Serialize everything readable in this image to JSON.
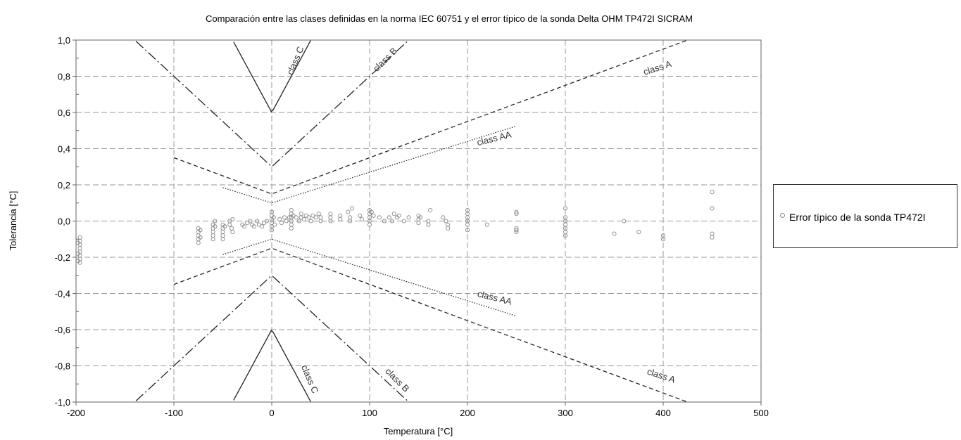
{
  "chart_data": {
    "type": "scatter",
    "title": "Comparación entre las clases definidas en la norma IEC 60751 y el error típico de la sonda Delta OHM TP472I SICRAM",
    "xlabel": "Temperatura [°C]",
    "ylabel": "Tolerancia [°C]",
    "xlim": [
      -200,
      500
    ],
    "ylim": [
      -1.0,
      1.0
    ],
    "xticks": [
      -200,
      -100,
      0,
      100,
      200,
      300,
      400,
      500
    ],
    "xtick_labels": [
      "-200",
      "-100",
      "0",
      "100",
      "200",
      "300",
      "400",
      "500"
    ],
    "yticks": [
      -1.0,
      -0.8,
      -0.6,
      -0.4,
      -0.2,
      0.0,
      0.2,
      0.4,
      0.6,
      0.8,
      1.0
    ],
    "ytick_labels": [
      "-1,0",
      "-0,8",
      "-0,6",
      "-0,4",
      "-0,2",
      "0,0",
      "0,2",
      "0,4",
      "0,6",
      "0,8",
      "1,0"
    ],
    "grid": true,
    "legend_position": "right",
    "tolerance_classes": [
      {
        "label": "class AA",
        "offset": 0.1,
        "slope": 0.0017,
        "x_range": [
          -50,
          250
        ],
        "style": "dotted"
      },
      {
        "label": "class A",
        "offset": 0.15,
        "slope": 0.002,
        "x_range": [
          -100,
          500
        ],
        "style": "dashed"
      },
      {
        "label": "class B",
        "offset": 0.3,
        "slope": 0.005,
        "x_range": [
          -200,
          500
        ],
        "style": "dashdot"
      },
      {
        "label": "class C",
        "offset": 0.6,
        "slope": 0.01,
        "x_range": [
          -200,
          500
        ],
        "style": "solid"
      }
    ],
    "class_labels": [
      {
        "text": "class C",
        "x": 27,
        "y": 0.88,
        "angle": -67
      },
      {
        "text": "class B",
        "x": 118,
        "y": 0.88,
        "angle": -45
      },
      {
        "text": "class A",
        "x": 395,
        "y": 0.83,
        "angle": -18
      },
      {
        "text": "class AA",
        "x": 228,
        "y": 0.44,
        "angle": -14
      },
      {
        "text": "class AA",
        "x": 227,
        "y": -0.44,
        "angle": 14
      },
      {
        "text": "class A",
        "x": 397,
        "y": -0.87,
        "angle": 18
      },
      {
        "text": "class B",
        "x": 126,
        "y": -0.89,
        "angle": 45
      },
      {
        "text": "class C",
        "x": 36,
        "y": -0.88,
        "angle": 67
      }
    ],
    "series": [
      {
        "name": "Error típico de la sonda TP472I",
        "points": [
          [
            -196,
            -0.09
          ],
          [
            -196,
            -0.11
          ],
          [
            -196,
            -0.13
          ],
          [
            -196,
            -0.15
          ],
          [
            -196,
            -0.17
          ],
          [
            -196,
            -0.19
          ],
          [
            -196,
            -0.21
          ],
          [
            -196,
            -0.23
          ],
          [
            -198,
            -0.12
          ],
          [
            -198,
            -0.18
          ],
          [
            -198,
            -0.22
          ],
          [
            -75,
            -0.04
          ],
          [
            -75,
            -0.06
          ],
          [
            -75,
            -0.08
          ],
          [
            -75,
            -0.1
          ],
          [
            -75,
            -0.12
          ],
          [
            -73,
            -0.05
          ],
          [
            -73,
            -0.09
          ],
          [
            -60,
            -0.02
          ],
          [
            -60,
            -0.04
          ],
          [
            -60,
            -0.06
          ],
          [
            -60,
            -0.08
          ],
          [
            -60,
            -0.1
          ],
          [
            -58,
            0.0
          ],
          [
            -58,
            -0.03
          ],
          [
            -50,
            -0.02
          ],
          [
            -50,
            -0.04
          ],
          [
            -50,
            -0.06
          ],
          [
            -50,
            -0.08
          ],
          [
            -50,
            -0.1
          ],
          [
            -48,
            -0.03
          ],
          [
            -43,
            0.0
          ],
          [
            -43,
            -0.02
          ],
          [
            -41,
            -0.04
          ],
          [
            -40,
            0.01
          ],
          [
            -40,
            -0.06
          ],
          [
            -30,
            -0.02
          ],
          [
            -28,
            -0.03
          ],
          [
            -25,
            -0.01
          ],
          [
            -22,
            0.0
          ],
          [
            -20,
            -0.02
          ],
          [
            -18,
            -0.03
          ],
          [
            -15,
            0.0
          ],
          [
            -13,
            -0.02
          ],
          [
            -10,
            -0.03
          ],
          [
            -8,
            -0.01
          ],
          [
            -5,
            0.0
          ],
          [
            0,
            0.05
          ],
          [
            0,
            0.03
          ],
          [
            0,
            0.01
          ],
          [
            0,
            -0.01
          ],
          [
            0,
            -0.03
          ],
          [
            0,
            -0.05
          ],
          [
            2,
            0.02
          ],
          [
            3,
            -0.02
          ],
          [
            8,
            0.01
          ],
          [
            10,
            -0.01
          ],
          [
            13,
            0.02
          ],
          [
            15,
            0.0
          ],
          [
            18,
            0.02
          ],
          [
            20,
            0.06
          ],
          [
            20,
            0.04
          ],
          [
            20,
            0.02
          ],
          [
            20,
            0.0
          ],
          [
            20,
            -0.02
          ],
          [
            20,
            -0.04
          ],
          [
            22,
            0.03
          ],
          [
            25,
            0.02
          ],
          [
            28,
            0.0
          ],
          [
            30,
            0.04
          ],
          [
            30,
            0.02
          ],
          [
            33,
            0.01
          ],
          [
            35,
            0.03
          ],
          [
            38,
            0.02
          ],
          [
            40,
            0.0
          ],
          [
            42,
            0.03
          ],
          [
            45,
            0.02
          ],
          [
            48,
            0.04
          ],
          [
            50,
            0.02
          ],
          [
            50,
            0.0
          ],
          [
            60,
            0.04
          ],
          [
            60,
            0.02
          ],
          [
            60,
            0.0
          ],
          [
            70,
            0.03
          ],
          [
            70,
            0.01
          ],
          [
            78,
            0.05
          ],
          [
            80,
            0.0
          ],
          [
            80,
            0.02
          ],
          [
            82,
            0.07
          ],
          [
            90,
            0.03
          ],
          [
            92,
            0.01
          ],
          [
            100,
            0.06
          ],
          [
            100,
            0.04
          ],
          [
            100,
            0.02
          ],
          [
            100,
            0.0
          ],
          [
            100,
            -0.02
          ],
          [
            102,
            0.05
          ],
          [
            104,
            0.03
          ],
          [
            110,
            0.02
          ],
          [
            115,
            0.0
          ],
          [
            120,
            0.02
          ],
          [
            123,
            0.0
          ],
          [
            125,
            0.04
          ],
          [
            128,
            0.02
          ],
          [
            130,
            0.03
          ],
          [
            135,
            0.0
          ],
          [
            140,
            0.02
          ],
          [
            150,
            0.03
          ],
          [
            150,
            0.01
          ],
          [
            150,
            -0.01
          ],
          [
            152,
            0.02
          ],
          [
            160,
            0.0
          ],
          [
            160,
            -0.02
          ],
          [
            162,
            0.06
          ],
          [
            175,
            0.02
          ],
          [
            178,
            0.0
          ],
          [
            180,
            -0.02
          ],
          [
            180,
            -0.04
          ],
          [
            200,
            0.06
          ],
          [
            200,
            0.04
          ],
          [
            200,
            0.02
          ],
          [
            200,
            0.0
          ],
          [
            200,
            -0.02
          ],
          [
            200,
            -0.05
          ],
          [
            220,
            -0.02
          ],
          [
            250,
            0.05
          ],
          [
            250,
            0.04
          ],
          [
            250,
            -0.04
          ],
          [
            250,
            -0.05
          ],
          [
            250,
            -0.06
          ],
          [
            300,
            0.07
          ],
          [
            300,
            0.02
          ],
          [
            300,
            0.0
          ],
          [
            300,
            -0.02
          ],
          [
            300,
            -0.04
          ],
          [
            300,
            -0.06
          ],
          [
            300,
            -0.08
          ],
          [
            350,
            -0.07
          ],
          [
            360,
            0.0
          ],
          [
            375,
            -0.06
          ],
          [
            400,
            -0.08
          ],
          [
            400,
            -0.1
          ],
          [
            450,
            0.16
          ],
          [
            450,
            0.07
          ],
          [
            450,
            -0.07
          ],
          [
            450,
            -0.09
          ]
        ]
      }
    ]
  }
}
